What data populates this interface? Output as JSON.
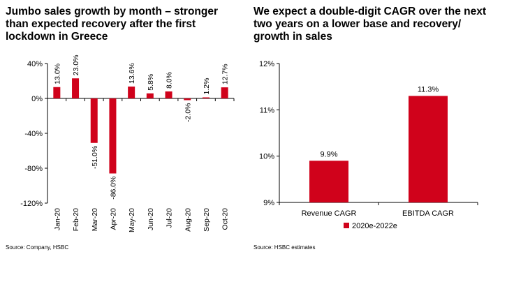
{
  "left_panel": {
    "title": "Jumbo sales growth by month – stronger than expected recovery after the first lockdown in Greece",
    "source": "Source: Company, HSBC"
  },
  "right_panel": {
    "title": "We expect a double-digit CAGR over the next two years on a lower base and recovery/ growth in sales",
    "source": "Source: HSBC estimates"
  },
  "colors": {
    "bar": "#d0021b",
    "axis": "#000000"
  },
  "chart_data": [
    {
      "type": "bar",
      "title": "Jumbo sales growth by month – stronger than expected recovery after the first lockdown in Greece",
      "categories": [
        "Jan-20",
        "Feb-20",
        "Mar-20",
        "Apr-20",
        "May-20",
        "Jun-20",
        "Jul-20",
        "Aug-20",
        "Sep-20",
        "Oct-20"
      ],
      "values": [
        13.0,
        23.0,
        -51.0,
        -86.0,
        13.6,
        5.8,
        8.0,
        -2.0,
        1.2,
        12.7
      ],
      "data_labels": [
        "13.0%",
        "23.0%",
        "-51.0%",
        "-86.0%",
        "13.6%",
        "5.8%",
        "8.0%",
        "-2.0%",
        "1.2%",
        "12.7%"
      ],
      "ylim": [
        -120,
        40
      ],
      "yticks": [
        40,
        0,
        -40,
        -80,
        -120
      ],
      "ytick_labels": [
        "40%",
        "0%",
        "-40%",
        "-80%",
        "-120%"
      ],
      "xlabel": "",
      "ylabel": "",
      "legend": false
    },
    {
      "type": "bar",
      "title": "We expect a double-digit CAGR over the next two years on a lower base and recovery/ growth in sales",
      "categories": [
        "Revenue CAGR",
        "EBITDA CAGR"
      ],
      "series": [
        {
          "name": "2020e-2022e",
          "values": [
            9.9,
            11.3
          ]
        }
      ],
      "data_labels": [
        "9.9%",
        "11.3%"
      ],
      "ylim": [
        9,
        12
      ],
      "yticks": [
        12,
        11,
        10,
        9
      ],
      "ytick_labels": [
        "12%",
        "11%",
        "10%",
        "9%"
      ],
      "xlabel": "",
      "ylabel": "",
      "legend": "bottom"
    }
  ]
}
